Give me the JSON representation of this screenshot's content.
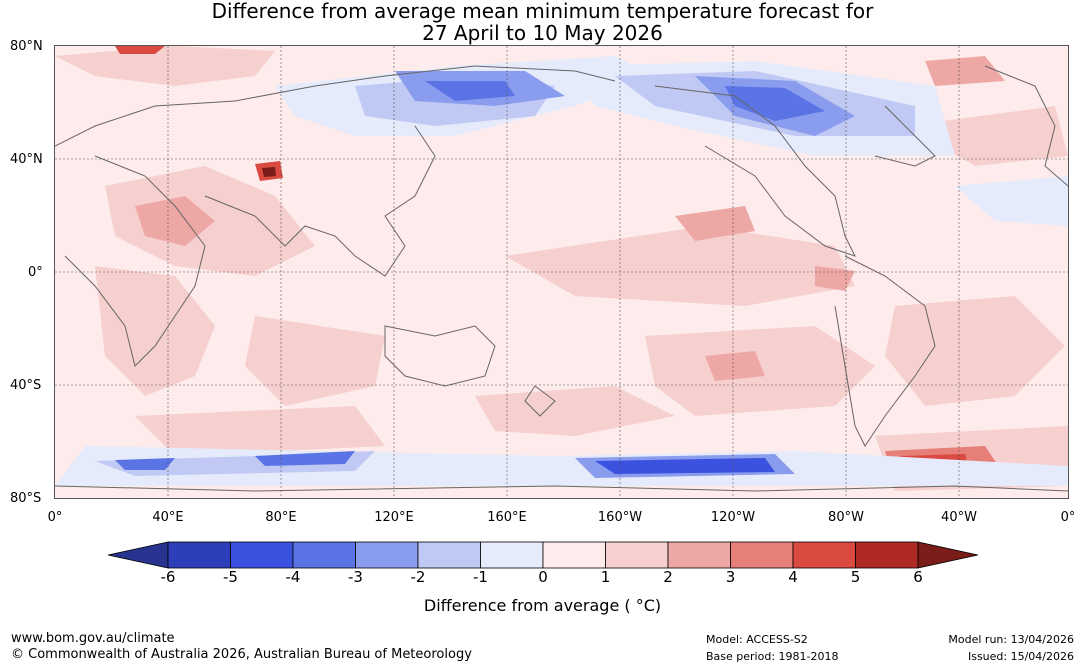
{
  "title": {
    "line1": "Difference from average mean minimum temperature forecast for",
    "line2": "27 April to 10 May 2026"
  },
  "map": {
    "lat_labels": [
      "80°N",
      "40°N",
      "0°",
      "40°S",
      "80°S"
    ],
    "lon_labels": [
      "0°",
      "40°E",
      "80°E",
      "120°E",
      "160°E",
      "160°W",
      "120°W",
      "80°W",
      "40°W",
      "0°"
    ],
    "background_anomaly_color": "#fdeceb",
    "coastline_color": "#666666"
  },
  "colorbar": {
    "ticks": [
      "-6",
      "-5",
      "-4",
      "-3",
      "-2",
      "-1",
      "0",
      "1",
      "2",
      "3",
      "4",
      "5",
      "6"
    ],
    "colors": [
      "#27338f",
      "#2c3eb8",
      "#3b52e0",
      "#5b74e5",
      "#8a9ced",
      "#c0c8f4",
      "#e6ebfb",
      "#fdeceb",
      "#f6cfcf",
      "#eda8a5",
      "#e67f78",
      "#da4a40",
      "#b02a25",
      "#7a1c17"
    ],
    "label": "Difference from average ( °C)"
  },
  "footer": {
    "url": "www.bom.gov.au/climate",
    "copyright": "© Commonwealth of Australia 2026, Australian Bureau of Meteorology",
    "model": "Model: ACCESS-S2",
    "base_period": "Base period: 1981-2018",
    "model_run": "Model run: 13/04/2026",
    "issued": "Issued: 15/04/2026"
  }
}
